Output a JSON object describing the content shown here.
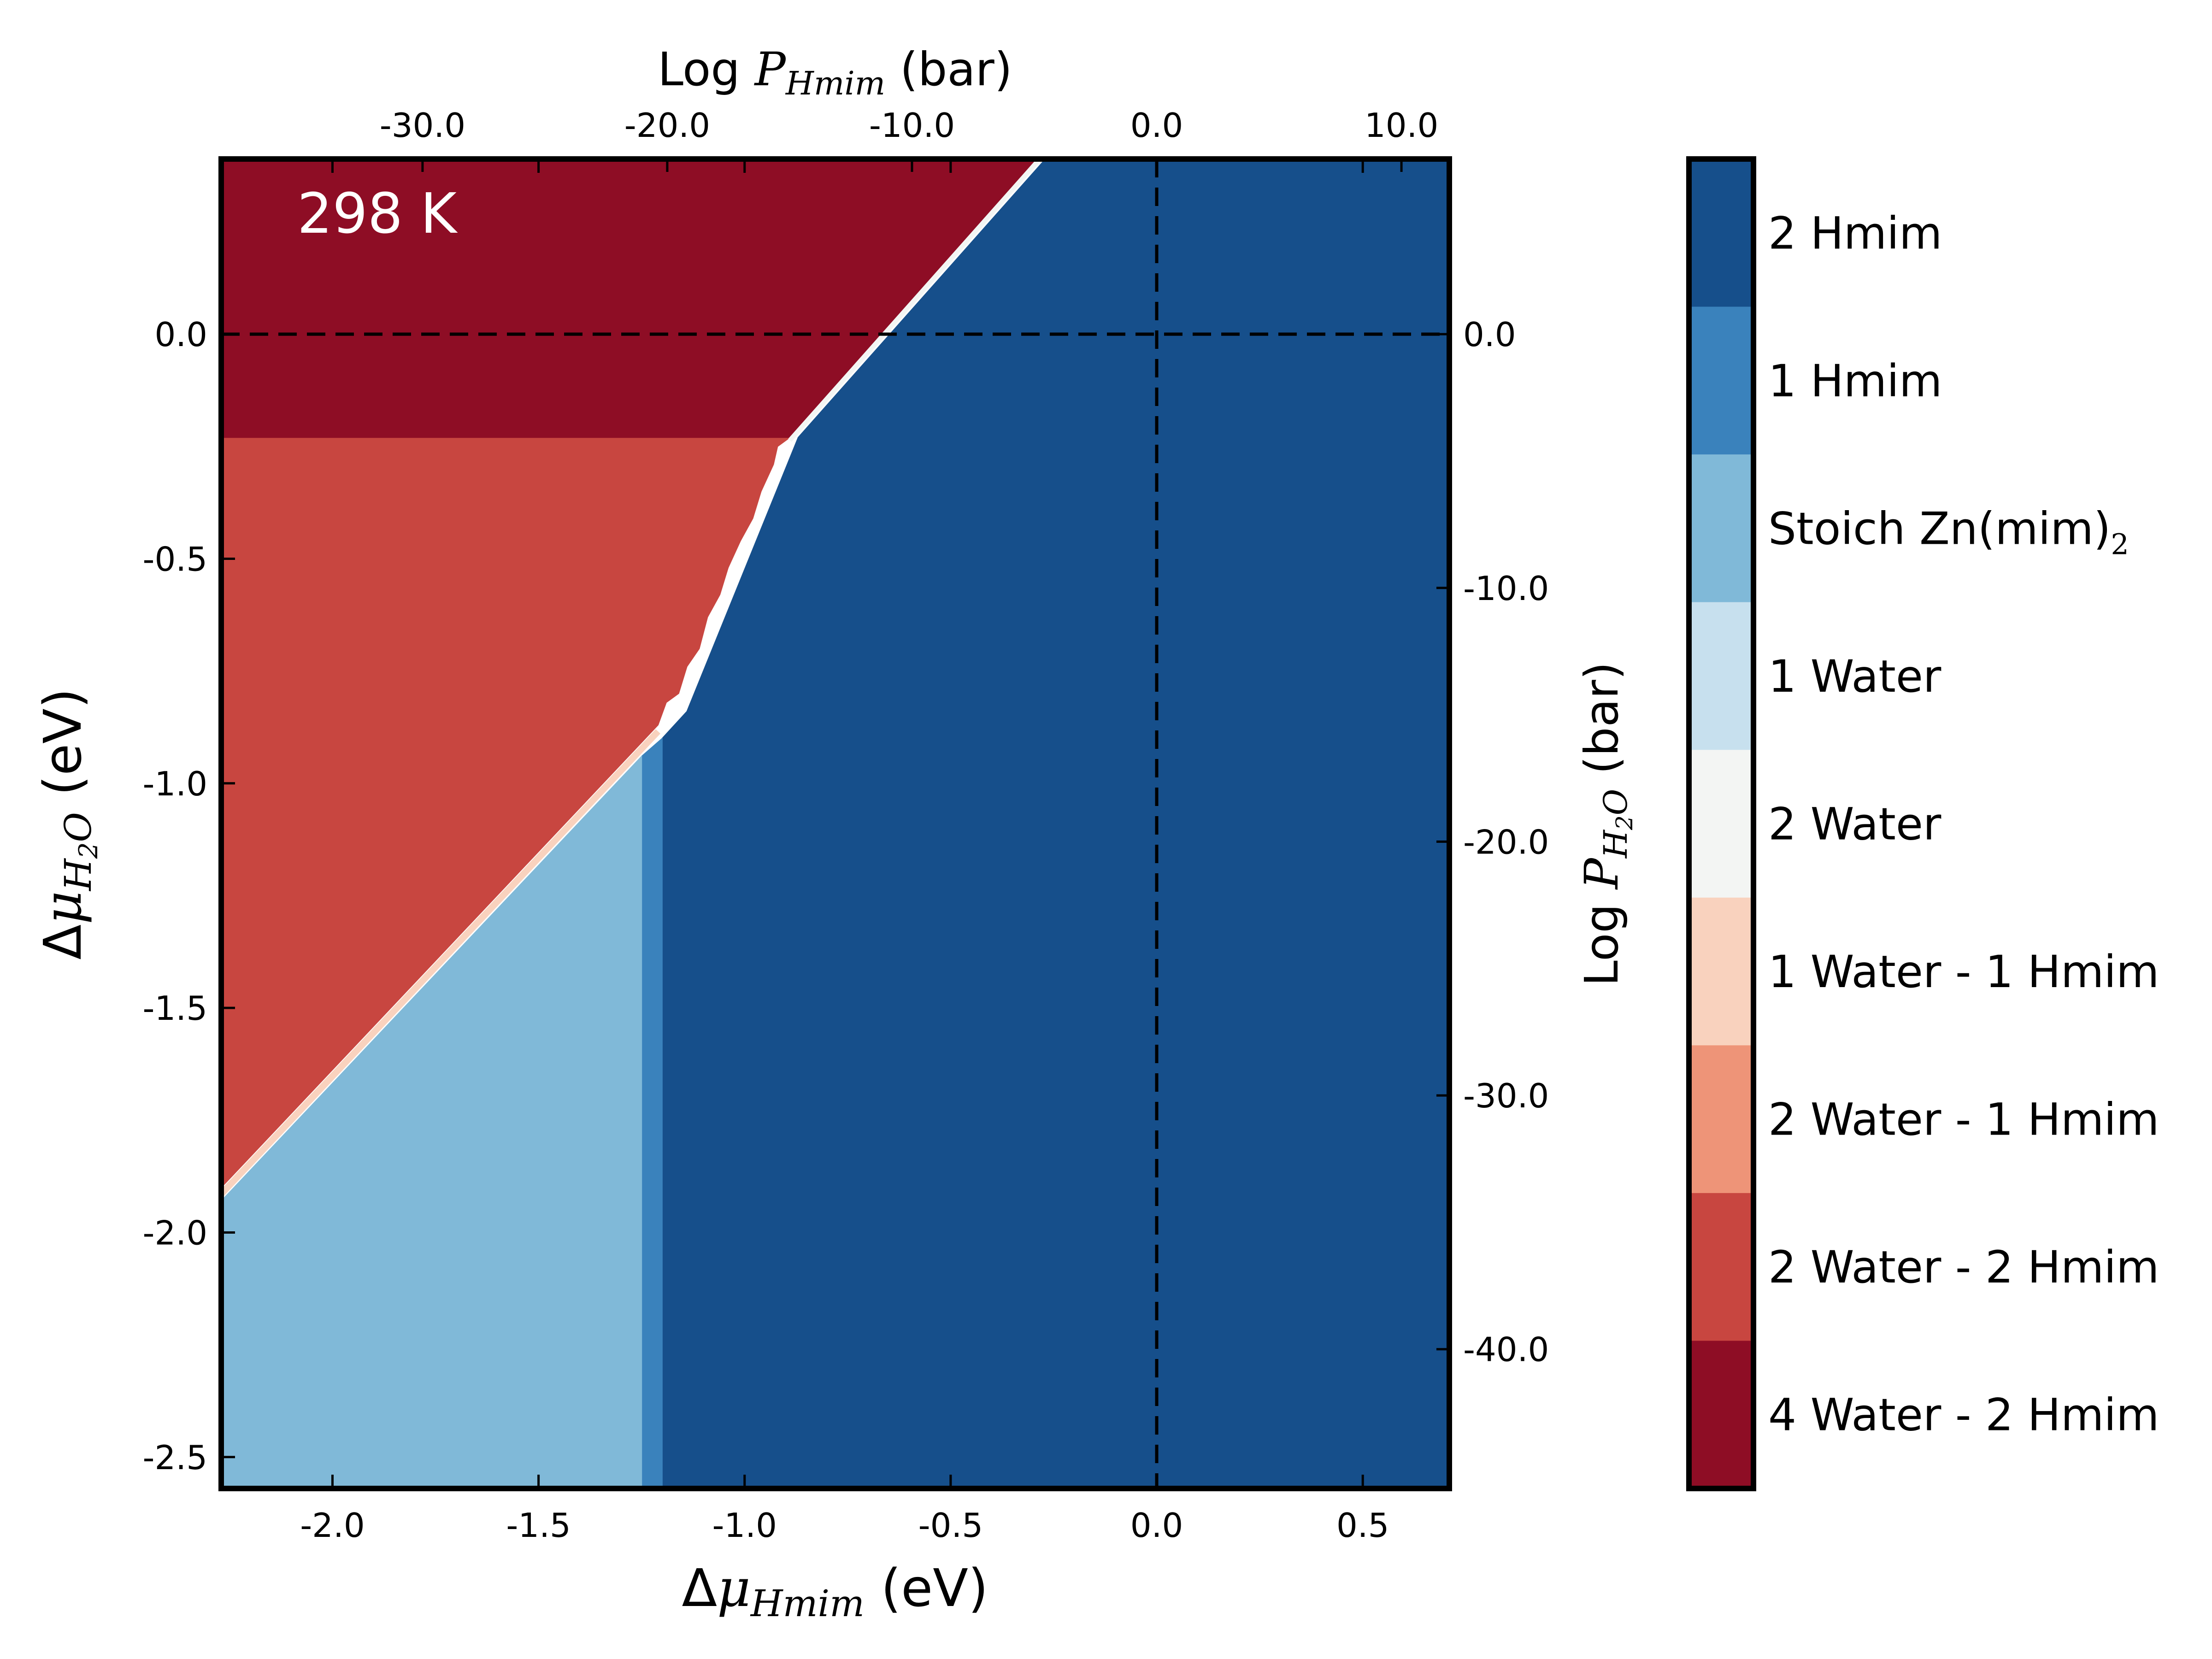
{
  "chart_data": {
    "type": "heatmap",
    "temperature_label": "298 K",
    "x_axis": {
      "label_prefix": "Δ",
      "label_symbol": "μ",
      "label_sub": "Hmim",
      "label_unit": " (eV)",
      "range": [
        -2.27,
        0.71
      ],
      "ticks": [
        -2.0,
        -1.5,
        -1.0,
        -0.5,
        0.0,
        0.5
      ],
      "tick_labels": [
        "-2.0",
        "-1.5",
        "-1.0",
        "-0.5",
        "0.0",
        "0.5"
      ]
    },
    "y_axis": {
      "label_prefix": "Δ",
      "label_symbol": "μ",
      "label_sub": "H",
      "label_sub2": "2",
      "label_sub3": "O",
      "label_unit": " (eV)",
      "range": [
        -2.57,
        0.39
      ],
      "ticks": [
        0.0,
        -0.5,
        -1.0,
        -1.5,
        -2.0,
        -2.5
      ],
      "tick_labels": [
        "0.0",
        "-0.5",
        "-1.0",
        "-1.5",
        "-2.0",
        "-2.5"
      ]
    },
    "top_axis": {
      "label_prefix": "Log ",
      "label_symbol": "P",
      "label_sub": "Hmim",
      "label_unit": " (bar)",
      "ticks": [
        -30.0,
        -20.0,
        -10.0,
        0.0,
        10.0
      ],
      "tick_labels": [
        "-30.0",
        "-20.0",
        "-10.0",
        "0.0",
        "10.0"
      ]
    },
    "right_axis": {
      "label_prefix": "Log ",
      "label_symbol": "P",
      "label_sub": "H",
      "label_sub2": "2",
      "label_sub3": "O",
      "label_unit": " (bar)",
      "ticks": [
        0.0,
        -10.0,
        -20.0,
        -30.0,
        -40.0
      ],
      "tick_labels": [
        "0.0",
        "-10.0",
        "-20.0",
        "-30.0",
        "-40.0"
      ]
    },
    "reference_lines": {
      "x": 0.0,
      "y": 0.0,
      "style": "dashed"
    },
    "regions": [
      {
        "phase": "2 Hmim",
        "color": "#164f8b",
        "boundary": [
          [
            -1.2,
            -2.57
          ],
          [
            -1.2,
            -0.9
          ],
          [
            -1.14,
            -0.84
          ],
          [
            -0.87,
            -0.23
          ],
          [
            -0.27,
            0.39
          ],
          [
            0.71,
            0.39
          ],
          [
            0.71,
            -2.57
          ]
        ]
      },
      {
        "phase": "1 Hmim",
        "color": "#3a82bc",
        "boundary": [
          [
            -1.25,
            -2.57
          ],
          [
            -1.25,
            -0.94
          ],
          [
            -1.2,
            -0.9
          ],
          [
            -1.2,
            -2.57
          ]
        ]
      },
      {
        "phase": "Stoich Zn(mim)2",
        "color": "#80b9d8",
        "boundary": [
          [
            -2.27,
            -2.57
          ],
          [
            -2.27,
            -1.93
          ],
          [
            -1.25,
            -0.94
          ],
          [
            -1.25,
            -2.57
          ]
        ]
      },
      {
        "phase": "2 Water - 2 Hmim",
        "color": "#c84640",
        "boundary": [
          [
            -2.27,
            -1.9
          ],
          [
            -1.21,
            -0.87
          ],
          [
            -1.19,
            -0.82
          ],
          [
            -1.16,
            -0.8
          ],
          [
            -1.14,
            -0.74
          ],
          [
            -1.11,
            -0.7
          ],
          [
            -1.09,
            -0.63
          ],
          [
            -1.06,
            -0.58
          ],
          [
            -1.04,
            -0.52
          ],
          [
            -1.01,
            -0.46
          ],
          [
            -0.98,
            -0.41
          ],
          [
            -0.96,
            -0.35
          ],
          [
            -0.93,
            -0.29
          ],
          [
            -0.92,
            -0.25
          ],
          [
            -0.89,
            -0.23
          ],
          [
            -2.27,
            -0.23
          ]
        ]
      },
      {
        "phase": "4 Water - 2 Hmim",
        "color": "#8e0d25",
        "boundary": [
          [
            -2.27,
            -0.23
          ],
          [
            -0.89,
            -0.23
          ],
          [
            -0.29,
            0.39
          ],
          [
            -2.27,
            0.39
          ]
        ]
      }
    ],
    "colorbar": {
      "entries": [
        {
          "label": "2 Hmim",
          "color": "#164f8b"
        },
        {
          "label": "1 Hmim",
          "color": "#3a82bc"
        },
        {
          "label": "Stoich Zn(mim)",
          "sub": "2",
          "color": "#80b9d8"
        },
        {
          "label": "1 Water",
          "color": "#c7e0ee"
        },
        {
          "label": "2 Water",
          "color": "#f3f5f3"
        },
        {
          "label": "1 Water - 1 Hmim",
          "color": "#f9d2be"
        },
        {
          "label": "2 Water - 1 Hmim",
          "color": "#ee9478"
        },
        {
          "label": "2 Water - 2 Hmim",
          "color": "#c84640"
        },
        {
          "label": "4 Water - 2 Hmim",
          "color": "#8e0d25"
        }
      ]
    }
  }
}
